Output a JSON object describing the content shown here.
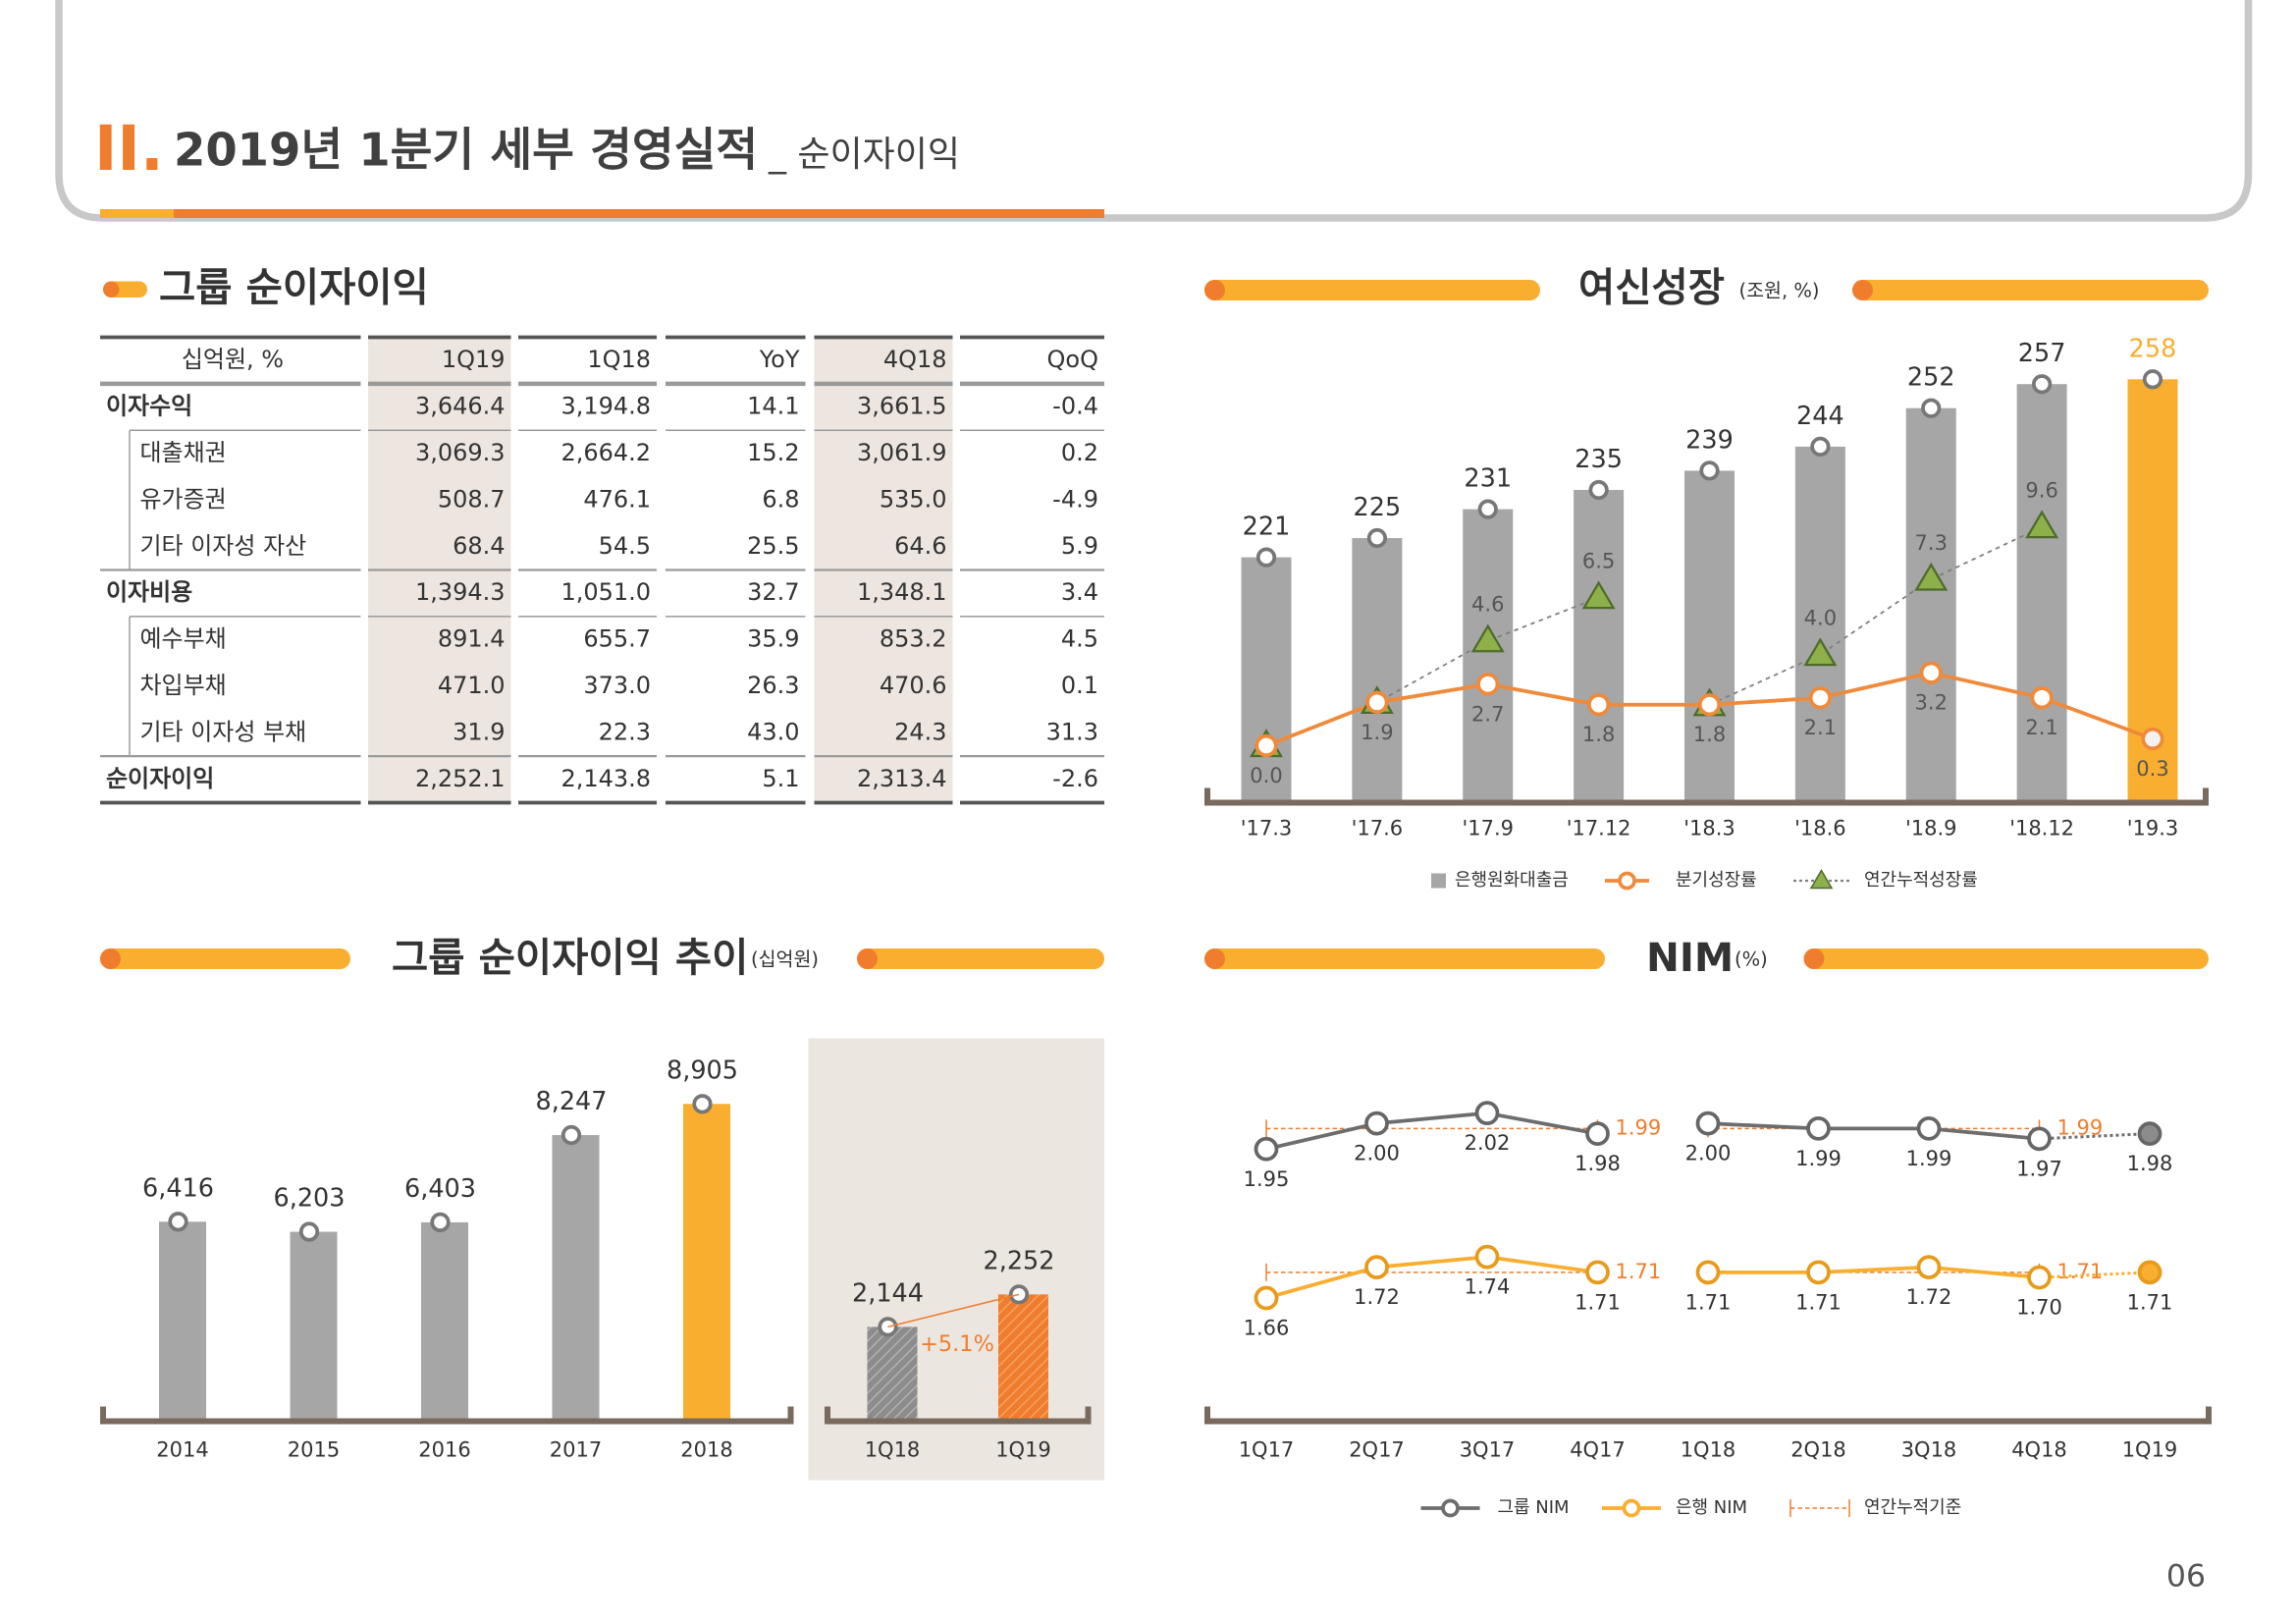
{
  "header": {
    "numeral": "II.",
    "title": "2019년 1분기 세부 경영실적",
    "subtitle": "_ 순이자이익"
  },
  "table": {
    "title": "그룹 순이자이익",
    "columns": [
      "십억원, %",
      "1Q19",
      "1Q18",
      "YoY",
      "4Q18",
      "QoQ"
    ],
    "rows": [
      {
        "label": "이자수익",
        "values": [
          "3,646.4",
          "3,194.8",
          "14.1",
          "3,661.5",
          "-0.4"
        ],
        "children": [
          {
            "label": "대출채권",
            "values": [
              "3,069.3",
              "2,664.2",
              "15.2",
              "3,061.9",
              "0.2"
            ]
          },
          {
            "label": "유가증권",
            "values": [
              "508.7",
              "476.1",
              "6.8",
              "535.0",
              "-4.9"
            ]
          },
          {
            "label": "기타 이자성 자산",
            "values": [
              "68.4",
              "54.5",
              "25.5",
              "64.6",
              "5.9"
            ]
          }
        ]
      },
      {
        "label": "이자비용",
        "values": [
          "1,394.3",
          "1,051.0",
          "32.7",
          "1,348.1",
          "3.4"
        ],
        "children": [
          {
            "label": "예수부채",
            "values": [
              "891.4",
              "655.7",
              "35.9",
              "853.2",
              "4.5"
            ]
          },
          {
            "label": "차입부채",
            "values": [
              "471.0",
              "373.0",
              "26.3",
              "470.6",
              "0.1"
            ]
          },
          {
            "label": "기타 이자성 부채",
            "values": [
              "31.9",
              "22.3",
              "43.0",
              "24.3",
              "31.3"
            ]
          }
        ]
      },
      {
        "label": "순이자이익",
        "values": [
          "2,252.1",
          "2,143.8",
          "5.1",
          "2,313.4",
          "-2.6"
        ],
        "children": []
      }
    ]
  },
  "chart_data": [
    {
      "type": "bar_line",
      "title": "여신성장",
      "unit": "(조원, %)",
      "categories": [
        "'17.3",
        "'17.6",
        "'17.9",
        "'17.12",
        "'18.3",
        "'18.6",
        "'18.9",
        "'18.12",
        "'19.3"
      ],
      "ylim": [
        170,
        260
      ],
      "y2lim": [
        -2.5,
        16.5
      ],
      "series": [
        {
          "name": "은행원화대출금",
          "type": "bar",
          "color": "#a6a6a6",
          "colors": [
            "#a6a6a6",
            "#a6a6a6",
            "#a6a6a6",
            "#a6a6a6",
            "#a6a6a6",
            "#a6a6a6",
            "#a6a6a6",
            "#a6a6a6",
            "#f9ae2f"
          ],
          "values": [
            221,
            225,
            231,
            235,
            239,
            244,
            252,
            257,
            258
          ]
        },
        {
          "name": "분기성장률",
          "type": "line",
          "axis": "y2",
          "color": "#ef8a3a",
          "values": [
            0,
            1.9,
            2.7,
            1.8,
            1.8,
            2.1,
            3.2,
            2.1,
            0.3
          ],
          "value_labels": [
            "0.0",
            "1.9",
            "2.7",
            "1.8",
            "1.8",
            "2.1",
            "3.2",
            "2.1",
            "0.3"
          ]
        },
        {
          "name": "연간누적성장률",
          "type": "line",
          "axis": "y2",
          "color": "#7f7f7f",
          "marker_color": "#8db04a",
          "values": [
            0,
            1.9,
            4.6,
            6.5,
            1.8,
            4.0,
            7.3,
            9.6,
            null
          ],
          "value_labels": [
            "0.0",
            "1.9",
            "4.6",
            "6.5",
            "1.8",
            "4.0",
            "7.3",
            "9.6",
            null
          ]
        }
      ]
    },
    {
      "type": "bar",
      "title": "그룹 순이자이익 추이",
      "unit": "(십억원)",
      "categories": [
        "2014",
        "2015",
        "2016",
        "2017",
        "2018"
      ],
      "values": [
        6416,
        6203,
        6403,
        8247,
        8905
      ],
      "value_labels": [
        "6,416",
        "6,203",
        "6,403",
        "8,247",
        "8,905"
      ],
      "colors": [
        "#a6a6a6",
        "#a6a6a6",
        "#a6a6a6",
        "#a6a6a6",
        "#f9ae2f"
      ],
      "ylim": [
        2200,
        9700
      ]
    },
    {
      "type": "bar",
      "categories": [
        "1Q18",
        "1Q19"
      ],
      "values": [
        2144,
        2252
      ],
      "value_labels": [
        "2,144",
        "2,252"
      ],
      "colors": [
        "#8c8c8c",
        "#ef7d2d"
      ],
      "annotation": "+5.1%",
      "ylim": [
        1830,
        2330
      ]
    },
    {
      "type": "line",
      "title": "NIM",
      "unit": "(%)",
      "categories": [
        "1Q17",
        "2Q17",
        "3Q17",
        "4Q17",
        "1Q18",
        "2Q18",
        "3Q18",
        "4Q18",
        "1Q19"
      ],
      "ylim": [
        1.42,
        2.18
      ],
      "series": [
        {
          "name": "그룹 NIM",
          "color": "#6d6d6d",
          "values": [
            1.95,
            2.0,
            2.02,
            1.98,
            2.0,
            1.99,
            1.99,
            1.97,
            1.98
          ],
          "value_labels": [
            "1.95",
            "2.00",
            "2.02",
            "1.98",
            "2.00",
            "1.99",
            "1.99",
            "1.97",
            "1.98"
          ]
        },
        {
          "name": "은행 NIM",
          "color": "#f9ae2f",
          "values": [
            1.66,
            1.72,
            1.74,
            1.71,
            1.71,
            1.71,
            1.72,
            1.7,
            1.71
          ],
          "value_labels": [
            "1.66",
            "1.72",
            "1.74",
            "1.71",
            "1.71",
            "1.71",
            "1.72",
            "1.70",
            "1.71"
          ]
        },
        {
          "name": "연간누적기준",
          "color": "#ef7d2d",
          "values": [
            null,
            null,
            null,
            1.99,
            null,
            null,
            null,
            1.99,
            null
          ],
          "bank_values": [
            null,
            null,
            null,
            1.71,
            null,
            null,
            null,
            1.71,
            null
          ]
        }
      ]
    }
  ],
  "page_number": "06"
}
